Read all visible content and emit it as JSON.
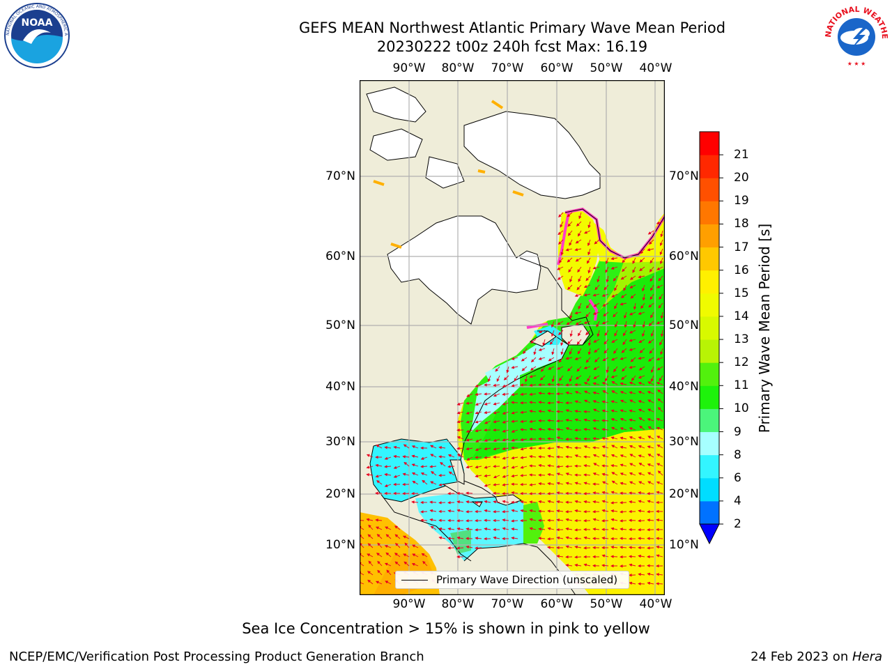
{
  "header": {
    "title_line1": "GEFS MEAN Northwest Atlantic Primary Wave Mean Period",
    "title_line2": "20230222 t00z 240h fcst   Max: 16.19"
  },
  "logos": {
    "left": {
      "name": "NOAA logo",
      "text": "NOAA",
      "ring_text": "NATIONAL OCEANIC AND ATMOSPHERIC ADMINISTRATION · U.S. DEPARTMENT OF COMMERCE"
    },
    "right": {
      "name": "National Weather Service logo",
      "ring_text": "NATIONAL WEATHER SERVICE"
    }
  },
  "map": {
    "lon_ticks": [
      "90°W",
      "80°W",
      "70°W",
      "60°W",
      "50°W",
      "40°W"
    ],
    "lat_ticks": [
      "70°N",
      "60°N",
      "50°N",
      "40°N",
      "30°N",
      "20°N",
      "10°N"
    ],
    "lon_range": [
      -100,
      -38
    ],
    "lat_range": [
      1,
      80
    ],
    "gridlines": true,
    "land_color": "#efedd9",
    "ice_free_land": "#ffffff",
    "arrow_color": "#e8001f",
    "legend_label": "Primary Wave Direction (unscaled)"
  },
  "colorbar": {
    "title": "Primary Wave Mean Period [s]",
    "tick_labels": [
      "2",
      "4",
      "6",
      "8",
      "9",
      "10",
      "11",
      "12",
      "13",
      "14",
      "15",
      "16",
      "17",
      "18",
      "19",
      "20",
      "21"
    ],
    "colors": [
      "#0072ff",
      "#00ddff",
      "#33f5ff",
      "#a6ffff",
      "#4bf57b",
      "#1ef20b",
      "#52f10d",
      "#b8f305",
      "#d8f900",
      "#f0fb00",
      "#fff000",
      "#ffc800",
      "#ff9f00",
      "#ff7700",
      "#ff5000",
      "#ff2800",
      "#ff0000"
    ],
    "extend_color": "#0000ff"
  },
  "notes": {
    "ice_note": "Sea Ice Concentration > 15% is shown in pink to yellow",
    "credit": "NCEP/EMC/Verification Post Processing Product Generation Branch",
    "date": "24 Feb 2023 on ",
    "host": "Hera"
  }
}
